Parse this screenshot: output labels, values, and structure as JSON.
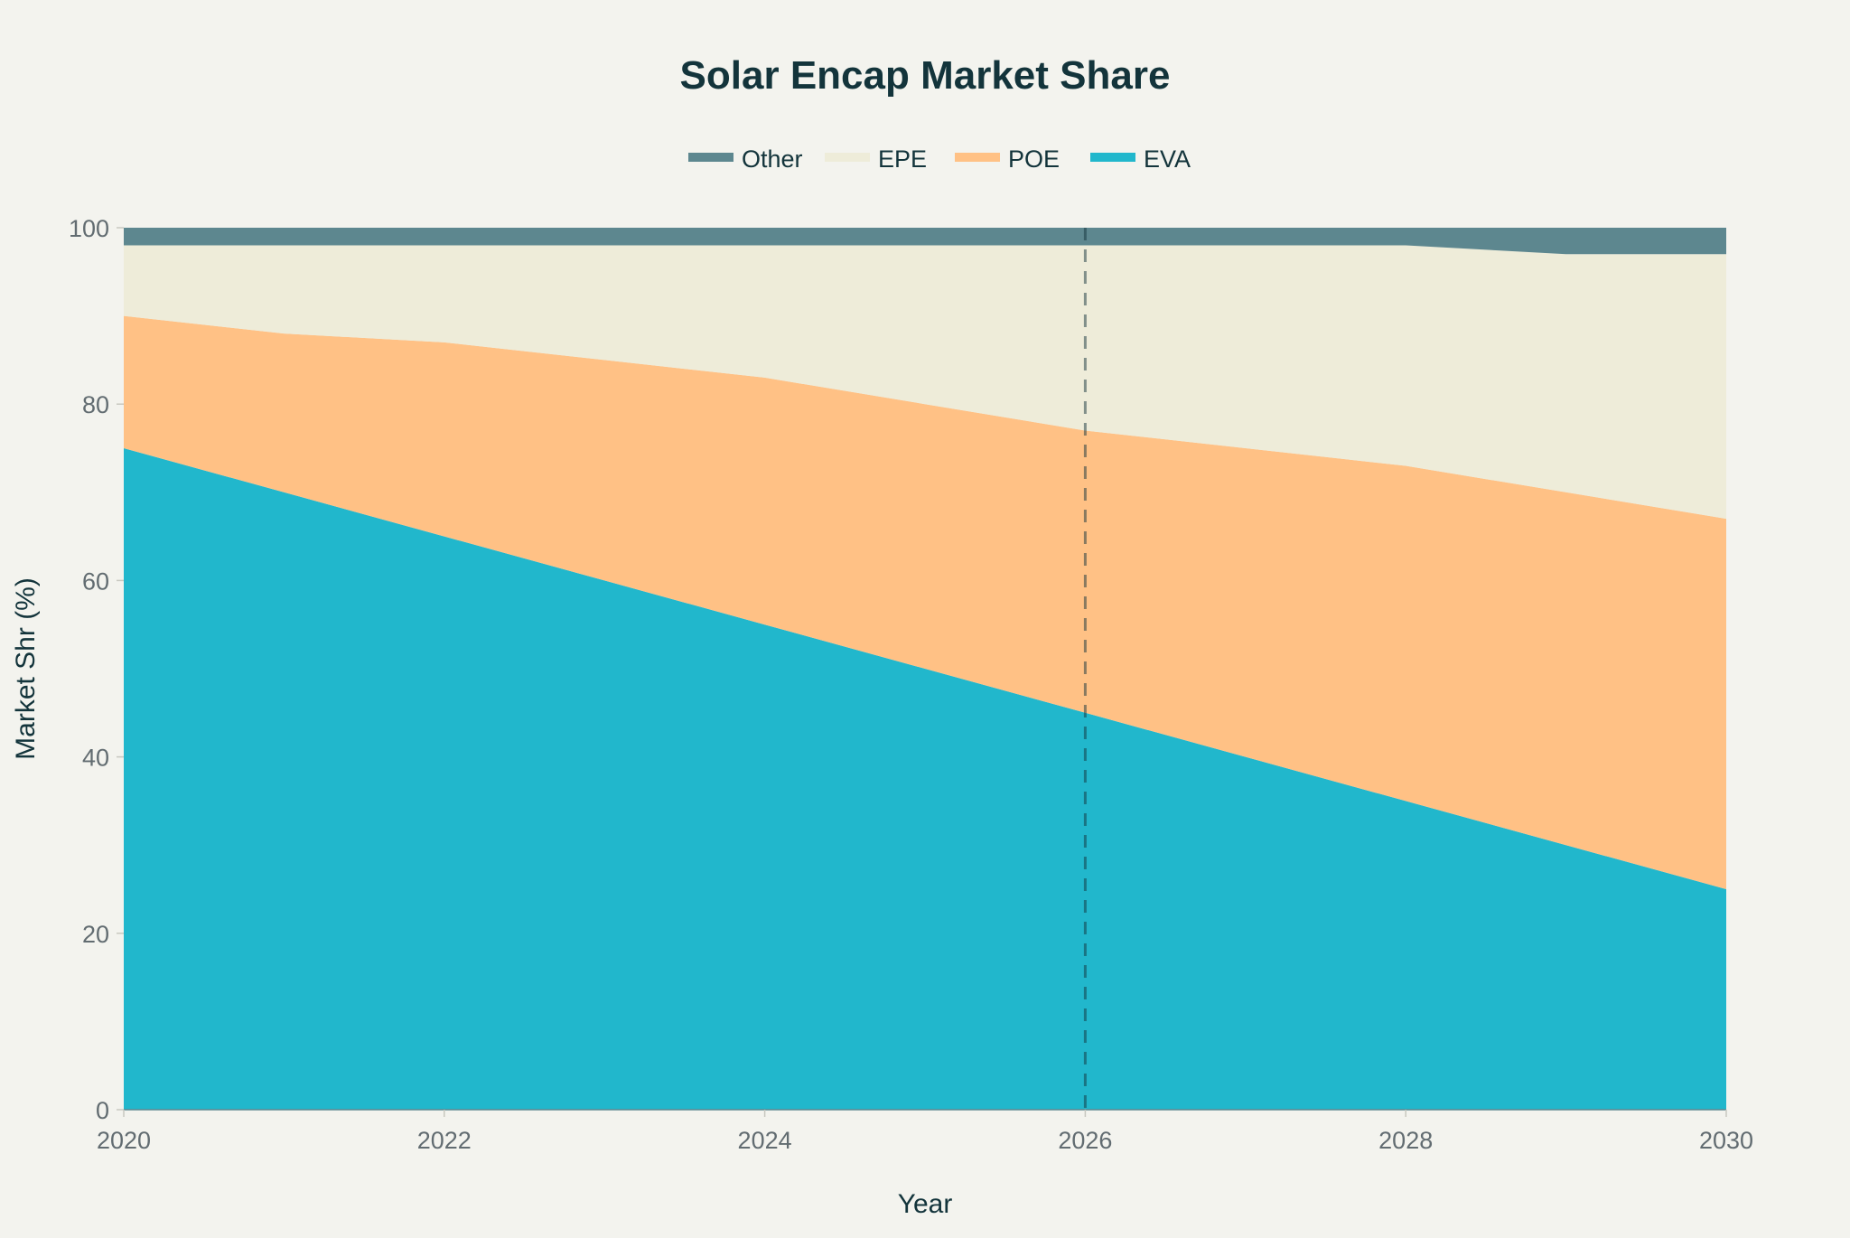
{
  "chart_data": {
    "type": "area",
    "stacked": true,
    "title": "Solar Encap Market Share",
    "xlabel": "Year",
    "ylabel": "Market Shr (%)",
    "x": [
      2020,
      2021,
      2022,
      2023,
      2024,
      2025,
      2026,
      2027,
      2028,
      2029,
      2030
    ],
    "xlim": [
      2020,
      2030
    ],
    "ylim": [
      0,
      100
    ],
    "xticks": [
      "2020",
      "2022",
      "2024",
      "2026",
      "2028",
      "2030"
    ],
    "yticks": [
      "0",
      "20",
      "40",
      "60",
      "80",
      "100"
    ],
    "grid": false,
    "legend_position": "top-center",
    "legend_order": [
      "Other",
      "EPE",
      "POE",
      "EVA"
    ],
    "series": [
      {
        "name": "EVA",
        "color": "#21b7cc",
        "values": [
          75,
          70,
          65,
          60,
          55,
          50,
          45,
          40,
          35,
          30,
          25
        ]
      },
      {
        "name": "POE",
        "color": "#ffc185",
        "values": [
          15,
          18,
          22,
          25,
          28,
          30,
          32,
          35,
          38,
          40,
          42
        ]
      },
      {
        "name": "EPE",
        "color": "#eeecd9",
        "values": [
          8,
          10,
          11,
          13,
          15,
          18,
          21,
          23,
          25,
          27,
          30
        ]
      },
      {
        "name": "Other",
        "color": "#5d878f",
        "values": [
          2,
          2,
          2,
          2,
          2,
          2,
          2,
          2,
          2,
          3,
          3
        ]
      }
    ],
    "reference_line": {
      "x": 2026,
      "style": "dashed"
    }
  }
}
